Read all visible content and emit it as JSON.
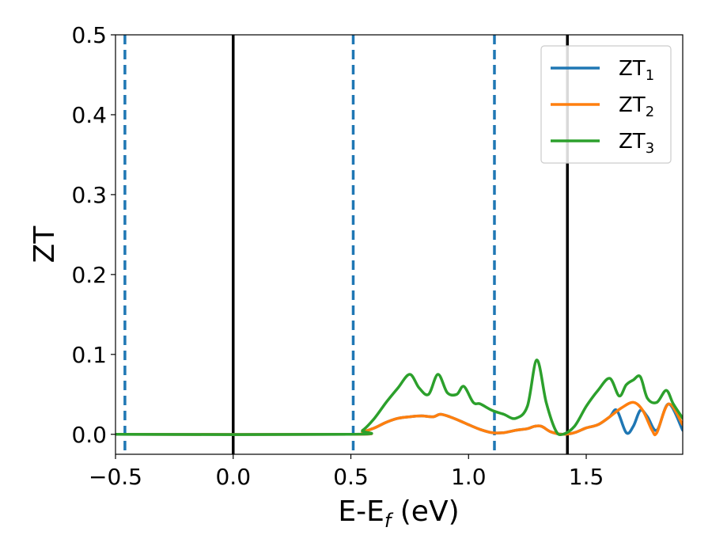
{
  "chart_data": {
    "type": "line",
    "xlabel_main": "E-E",
    "xlabel_sub": "f",
    "xlabel_unit": " (eV)",
    "ylabel": "ZT",
    "xlim": [
      -0.5,
      1.91
    ],
    "ylim": [
      -0.025,
      0.5
    ],
    "x_ticks": [
      -0.5,
      0.0,
      0.5,
      1.0,
      1.5
    ],
    "x_tick_labels": [
      "−0.5",
      "0.0",
      "0.5",
      "1.0",
      "1.5"
    ],
    "y_ticks": [
      0.0,
      0.1,
      0.2,
      0.3,
      0.4,
      0.5
    ],
    "y_tick_labels": [
      "0.0",
      "0.1",
      "0.2",
      "0.3",
      "0.4",
      "0.5"
    ],
    "grid": false,
    "legend_placement": "top-right",
    "series": [
      {
        "name": "ZT",
        "sub": "1",
        "color": "#1f77b4",
        "x": [
          -0.5,
          0.5,
          0.55,
          0.6,
          0.65,
          0.7,
          0.75,
          0.8,
          0.85,
          0.88,
          0.92,
          0.97,
          1.0,
          1.05,
          1.1,
          1.15,
          1.2,
          1.25,
          1.28,
          1.31,
          1.35,
          1.4,
          1.45,
          1.5,
          1.55,
          1.6,
          1.63,
          1.67,
          1.7,
          1.73,
          1.76,
          1.8,
          1.85,
          1.91
        ],
        "y": [
          0.0,
          0.0,
          0.003,
          0.008,
          0.015,
          0.02,
          0.022,
          0.023,
          0.022,
          0.025,
          0.022,
          0.016,
          0.012,
          0.006,
          0.002,
          0.002,
          0.005,
          0.007,
          0.01,
          0.01,
          0.003,
          0.0,
          0.002,
          0.008,
          0.012,
          0.022,
          0.03,
          0.002,
          0.01,
          0.03,
          0.022,
          0.005,
          0.038,
          0.005
        ]
      },
      {
        "name": "ZT",
        "sub": "2",
        "color": "#ff7f0e",
        "x": [
          -0.5,
          0.5,
          0.55,
          0.6,
          0.65,
          0.7,
          0.75,
          0.8,
          0.85,
          0.88,
          0.92,
          0.97,
          1.0,
          1.05,
          1.1,
          1.15,
          1.2,
          1.25,
          1.28,
          1.31,
          1.35,
          1.4,
          1.45,
          1.5,
          1.55,
          1.6,
          1.65,
          1.7,
          1.74,
          1.78,
          1.8,
          1.85,
          1.91
        ],
        "y": [
          0.0,
          0.0,
          0.003,
          0.008,
          0.015,
          0.02,
          0.022,
          0.023,
          0.022,
          0.025,
          0.022,
          0.016,
          0.012,
          0.006,
          0.002,
          0.002,
          0.005,
          0.007,
          0.01,
          0.01,
          0.003,
          0.0,
          0.002,
          0.008,
          0.012,
          0.022,
          0.033,
          0.04,
          0.03,
          0.005,
          0.002,
          0.038,
          0.012
        ]
      },
      {
        "name": "ZT",
        "sub": "3",
        "color": "#2ca02c",
        "x": [
          -0.5,
          0.5,
          0.55,
          0.6,
          0.65,
          0.7,
          0.75,
          0.79,
          0.83,
          0.87,
          0.91,
          0.95,
          0.98,
          1.02,
          1.05,
          1.1,
          1.15,
          1.2,
          1.25,
          1.29,
          1.33,
          1.37,
          1.4,
          1.45,
          1.5,
          1.55,
          1.6,
          1.64,
          1.67,
          1.7,
          1.73,
          1.76,
          1.8,
          1.84,
          1.87,
          1.91
        ],
        "y": [
          0.0,
          0.0,
          0.005,
          0.02,
          0.04,
          0.058,
          0.075,
          0.058,
          0.05,
          0.075,
          0.052,
          0.05,
          0.06,
          0.04,
          0.038,
          0.03,
          0.025,
          0.02,
          0.035,
          0.093,
          0.04,
          0.005,
          0.0,
          0.01,
          0.035,
          0.055,
          0.07,
          0.048,
          0.062,
          0.068,
          0.072,
          0.045,
          0.04,
          0.055,
          0.038,
          0.02
        ]
      }
    ],
    "vlines": [
      {
        "x": -0.46,
        "style": "dashed",
        "color": "#1f77b4"
      },
      {
        "x": 0.0,
        "style": "solid",
        "color": "#000000"
      },
      {
        "x": 0.51,
        "style": "dashed",
        "color": "#1f77b4"
      },
      {
        "x": 1.11,
        "style": "dashed",
        "color": "#1f77b4"
      },
      {
        "x": 1.42,
        "style": "solid",
        "color": "#000000"
      }
    ]
  }
}
